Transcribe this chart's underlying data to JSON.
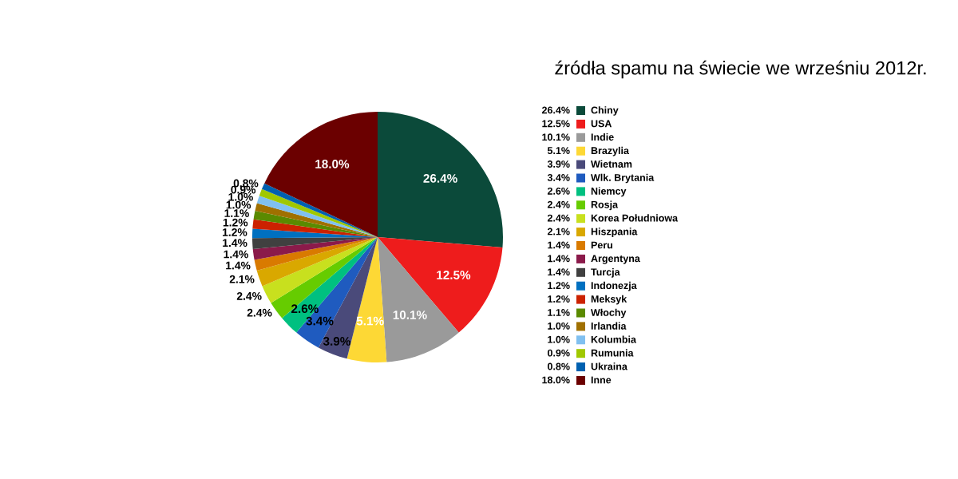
{
  "chart_data": {
    "type": "pie",
    "title": "źródła spamu na świecie we wrześniu 2012r.",
    "categories": [
      "Chiny",
      "USA",
      "Indie",
      "Brazylia",
      "Wietnam",
      "Wlk. Brytania",
      "Niemcy",
      "Rosja",
      "Korea Południowa",
      "Hiszpania",
      "Peru",
      "Argentyna",
      "Turcja",
      "Indonezja",
      "Meksyk",
      "Włochy",
      "Irlandia",
      "Kolumbia",
      "Rumunia",
      "Ukraina",
      "Inne"
    ],
    "values": [
      26.4,
      12.5,
      10.1,
      5.1,
      3.9,
      3.4,
      2.6,
      2.4,
      2.4,
      2.1,
      1.4,
      1.4,
      1.4,
      1.2,
      1.2,
      1.1,
      1.0,
      1.0,
      0.9,
      0.8,
      18.0
    ],
    "colors": [
      "#0b4a3a",
      "#ee1c1c",
      "#9a9a9a",
      "#fdd835",
      "#4a4a7a",
      "#1f5bbf",
      "#00c080",
      "#66cc00",
      "#c8e01e",
      "#d9a800",
      "#d97a00",
      "#8b1a4a",
      "#404040",
      "#0070c0",
      "#cc2200",
      "#5a8a00",
      "#a07000",
      "#80c0f0",
      "#a0c800",
      "#0060b0",
      "#6b0000"
    ],
    "value_labels": [
      "26.4%",
      "12.5%",
      "10.1%",
      "5.1%",
      "3.9%",
      "3.4%",
      "2.6%",
      "2.4%",
      "2.4%",
      "2.1%",
      "1.4%",
      "1.4%",
      "1.4%",
      "1.2%",
      "1.2%",
      "1.1%",
      "1.0%",
      "1.0%",
      "0.9%",
      "0.8%",
      "18.0%"
    ],
    "legend": "right"
  }
}
